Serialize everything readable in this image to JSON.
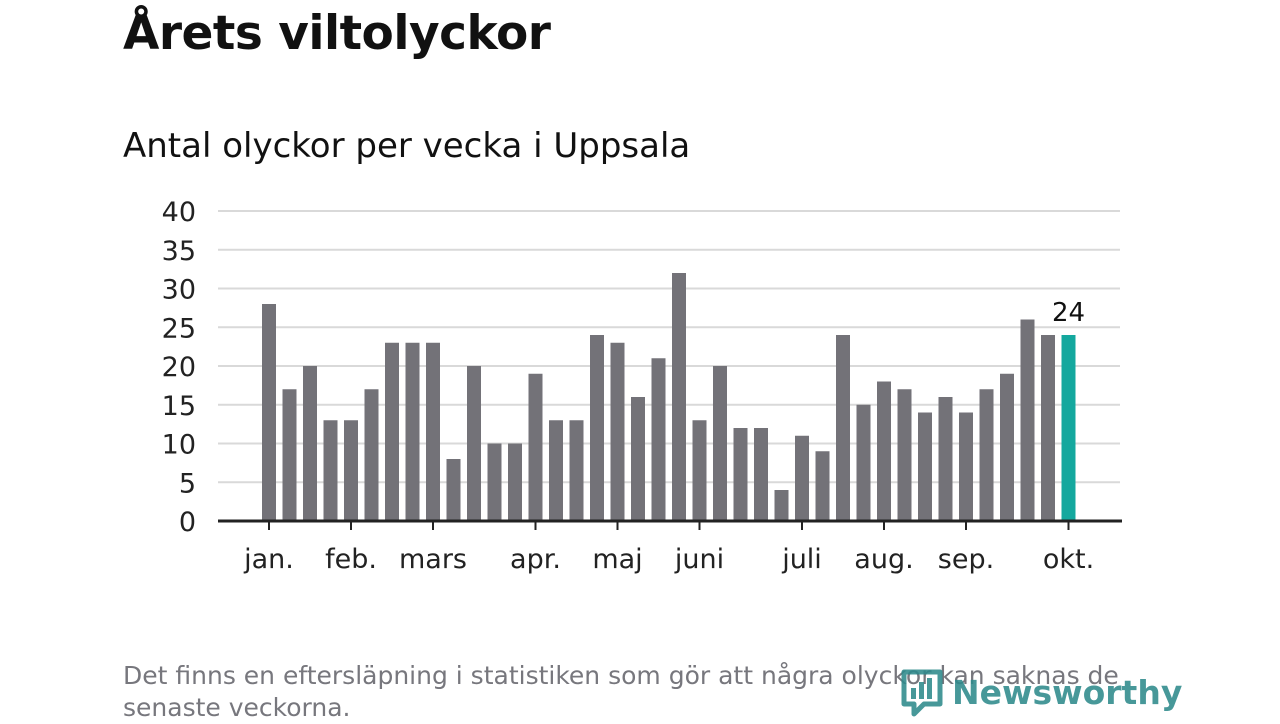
{
  "header": {
    "title": "Årets viltolyckor",
    "subtitle": "Antal olyckor per vecka i Uppsala"
  },
  "footnote": "Det finns en eftersläpning i statistiken som gör att några olyckor kan saknas de senaste veckorna.",
  "brand": {
    "name": "Newsworthy",
    "icon": "newsworthy-logo-icon",
    "color": "#2e8a8c"
  },
  "colors": {
    "bar": "#737278",
    "highlight": "#14a89e",
    "grid": "#d9d9d9",
    "axis": "#222222"
  },
  "chart_data": {
    "type": "bar",
    "title": "Antal olyckor per vecka i Uppsala",
    "xlabel": "",
    "ylabel": "",
    "ylim": [
      0,
      40
    ],
    "yticks": [
      0,
      5,
      10,
      15,
      20,
      25,
      30,
      35,
      40
    ],
    "grid": true,
    "values": [
      28,
      17,
      20,
      13,
      13,
      17,
      23,
      23,
      23,
      8,
      20,
      10,
      10,
      19,
      13,
      13,
      24,
      23,
      16,
      21,
      32,
      13,
      20,
      12,
      12,
      4,
      11,
      9,
      24,
      15,
      18,
      17,
      14,
      16,
      14,
      17,
      19,
      26,
      24,
      24
    ],
    "month_labels": [
      {
        "label": "jan.",
        "week_index": 0
      },
      {
        "label": "feb.",
        "week_index": 4
      },
      {
        "label": "mars",
        "week_index": 8
      },
      {
        "label": "apr.",
        "week_index": 13
      },
      {
        "label": "maj",
        "week_index": 17
      },
      {
        "label": "juni",
        "week_index": 21
      },
      {
        "label": "juli",
        "week_index": 26
      },
      {
        "label": "aug.",
        "week_index": 30
      },
      {
        "label": "sep.",
        "week_index": 34
      },
      {
        "label": "okt.",
        "week_index": 39
      }
    ],
    "highlight_index": 39,
    "annotations": [
      {
        "week_index": 39,
        "text": "24"
      }
    ]
  }
}
